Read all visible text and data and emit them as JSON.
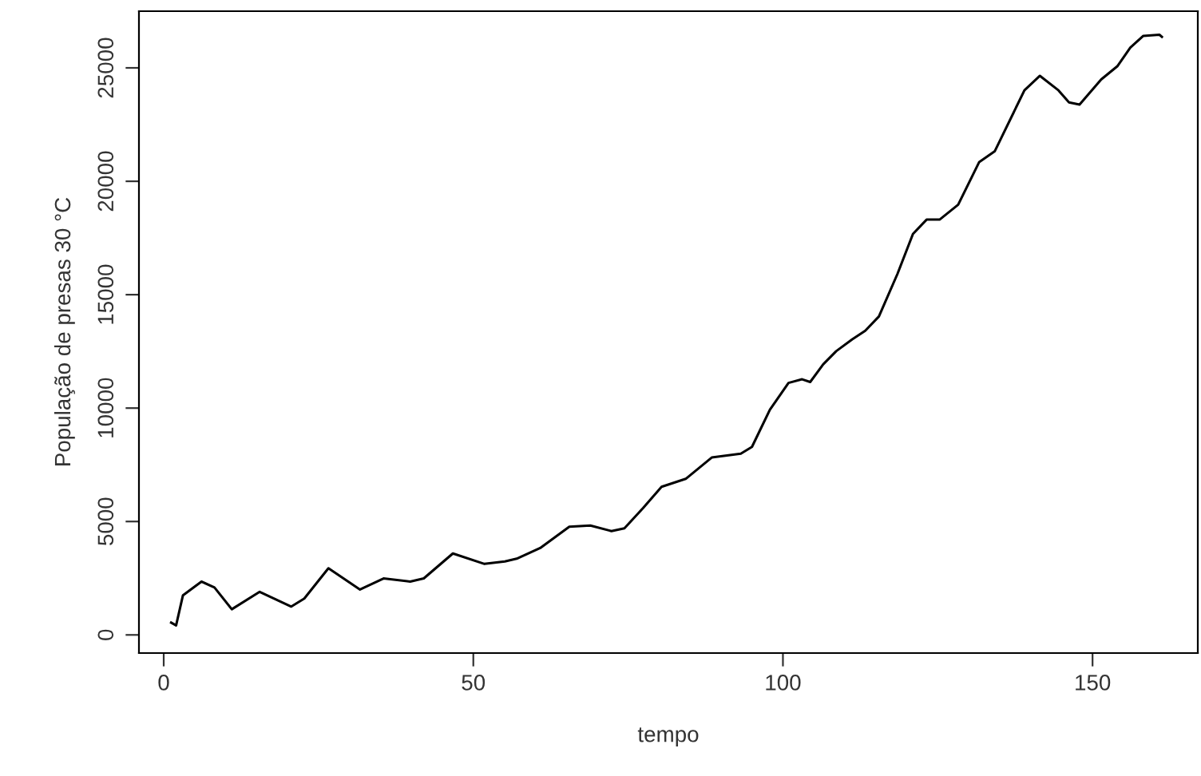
{
  "chart_data": {
    "type": "line",
    "xlabel": "tempo",
    "ylabel": "População de presas 30 °C",
    "xlim": [
      -4,
      167
    ],
    "ylim": [
      -800,
      27500
    ],
    "xticks": [
      0,
      50,
      100,
      150
    ],
    "yticks": [
      0,
      5000,
      10000,
      15000,
      20000,
      25000
    ],
    "grid": false,
    "legend": false,
    "marker": "none",
    "line_style": "solid",
    "series": [
      {
        "color": "#000000",
        "x": [
          1.2,
          2,
          3.1,
          6.1,
          8.2,
          11,
          15.5,
          20.6,
          22.7,
          26.6,
          31.7,
          35.5,
          39.8,
          42,
          46.7,
          51.8,
          55.1,
          57,
          60.8,
          65.5,
          68.9,
          72.3,
          74.4,
          77.4,
          80.4,
          84.3,
          88.5,
          93.2,
          95,
          97.9,
          100.9,
          103.1,
          104.4,
          106.5,
          108.6,
          111.2,
          113.3,
          115.5,
          118.5,
          121,
          123.2,
          125.3,
          128.3,
          131.7,
          134.2,
          139,
          141.5,
          144.5,
          146.2,
          147.9,
          151.4,
          154,
          156.1,
          158.2,
          160.8,
          161.2
        ],
        "values": [
          540,
          420,
          1740,
          2350,
          2090,
          1130,
          1900,
          1250,
          1600,
          2940,
          2000,
          2490,
          2350,
          2490,
          3590,
          3130,
          3240,
          3360,
          3830,
          4770,
          4820,
          4580,
          4700,
          5590,
          6530,
          6880,
          7820,
          7990,
          8290,
          9930,
          11110,
          11270,
          11150,
          11930,
          12510,
          13030,
          13410,
          14040,
          15920,
          17680,
          18310,
          18310,
          18970,
          20850,
          21320,
          24010,
          24650,
          24010,
          23480,
          23380,
          24490,
          25070,
          25890,
          26410,
          26460,
          26370
        ]
      }
    ]
  }
}
